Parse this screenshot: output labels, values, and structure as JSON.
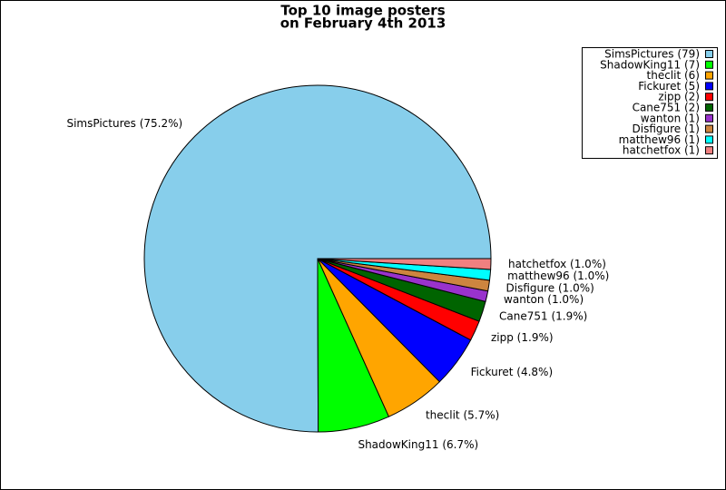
{
  "chart_data": {
    "type": "pie",
    "title": [
      "Top 10 image posters",
      "on February 4th 2013"
    ],
    "values": [
      75.2,
      6.7,
      5.7,
      4.8,
      1.9,
      1.9,
      1.0,
      1.0,
      1.0,
      1.0
    ],
    "value_labels": [
      "SimsPictures (75.2%)",
      "ShadowKing11 (6.7%)",
      "theclit (5.7%)",
      "Fickuret (4.8%)",
      "zipp (1.9%)",
      "Cane751 (1.9%)",
      "wanton (1.0%)",
      "Disfigure (1.0%)",
      "matthew96 (1.0%)",
      "hatchetfox (1.0%)"
    ],
    "legend_labels": [
      "SimsPictures (79)",
      "ShadowKing11 (7)",
      "theclit (6)",
      "Fickuret (5)",
      "zipp (2)",
      "Cane751 (2)",
      "wanton (1)",
      "Disfigure (1)",
      "matthew96 (1)",
      "hatchetfox (1)"
    ],
    "colors": [
      "#87ceeb",
      "#00ff00",
      "#ffa500",
      "#0000ff",
      "#ff0000",
      "#006400",
      "#9932cc",
      "#cd853f",
      "#00ffff",
      "#f08080"
    ],
    "legend": "upper right"
  }
}
